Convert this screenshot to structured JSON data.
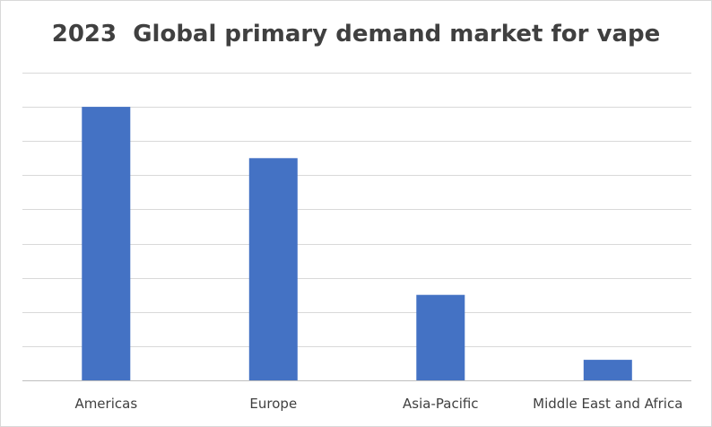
{
  "chart_data": {
    "type": "bar",
    "title": "2023  Global primary demand market for vape",
    "xlabel": "",
    "ylabel": "",
    "categories": [
      "Americas",
      "Europe",
      "Asia-Pacific",
      "Middle East and Africa"
    ],
    "values": [
      8.0,
      6.5,
      2.5,
      0.6
    ],
    "ylim": [
      0,
      9
    ],
    "gridlines": 9,
    "y_tick_labels_shown": false,
    "legend": false,
    "bar_color": "#4472C4",
    "grid": true
  }
}
